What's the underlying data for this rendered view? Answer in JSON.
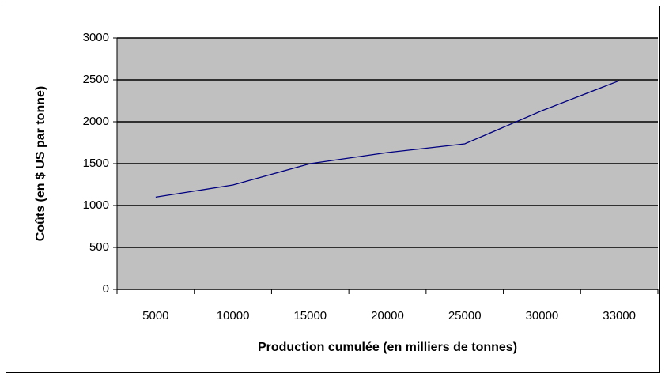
{
  "chart_data": {
    "type": "line",
    "xlabel": "Production cumulée (en milliers de tonnes)",
    "ylabel": "Coûts (en $ US par tonne)",
    "categories": [
      "5000",
      "10000",
      "15000",
      "20000",
      "25000",
      "30000",
      "33000"
    ],
    "values": [
      1100,
      1245,
      1500,
      1632,
      1736,
      2132,
      2490
    ],
    "color": "#000080",
    "ylim": [
      0,
      3000
    ],
    "yticks": [
      0,
      500,
      1000,
      1500,
      2000,
      2500,
      3000
    ],
    "grid": true
  }
}
